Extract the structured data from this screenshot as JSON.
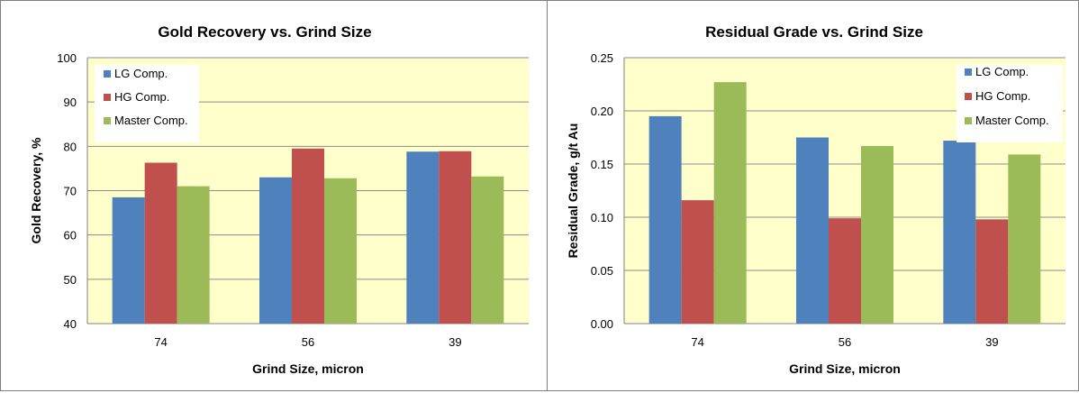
{
  "colors": {
    "plot_bg": "#FFFFCC",
    "grid": "#8C8C8C",
    "axis": "#808080",
    "series": [
      "#4F81BD",
      "#C0504D",
      "#9BBB59"
    ]
  },
  "chart_data": [
    {
      "type": "bar",
      "title": "Gold Recovery vs. Grind Size",
      "xlabel": "Grind Size, micron",
      "ylabel": "Gold Recovery, %",
      "categories": [
        "74",
        "56",
        "39"
      ],
      "ylim": [
        40,
        100
      ],
      "yticks": [
        "40",
        "50",
        "60",
        "70",
        "80",
        "90",
        "100"
      ],
      "grid": true,
      "legend_position": "top-left",
      "series": [
        {
          "name": "LG Comp.",
          "values": [
            68.5,
            73.0,
            78.8
          ]
        },
        {
          "name": "HG Comp.",
          "values": [
            76.3,
            79.5,
            78.9
          ]
        },
        {
          "name": "Master Comp.",
          "values": [
            71.0,
            72.8,
            73.2
          ]
        }
      ]
    },
    {
      "type": "bar",
      "title": "Residual Grade vs. Grind Size",
      "xlabel": "Grind Size, micron",
      "ylabel": "Residual Grade, g/t Au",
      "categories": [
        "74",
        "56",
        "39"
      ],
      "ylim": [
        0,
        0.25
      ],
      "yticks": [
        "0.00",
        "0.05",
        "0.10",
        "0.15",
        "0.20",
        "0.25"
      ],
      "grid": true,
      "legend_position": "top-right",
      "series": [
        {
          "name": "LG Comp.",
          "values": [
            0.195,
            0.175,
            0.172
          ]
        },
        {
          "name": "HG Comp.",
          "values": [
            0.116,
            0.099,
            0.098
          ]
        },
        {
          "name": "Master Comp.",
          "values": [
            0.227,
            0.167,
            0.159
          ]
        }
      ]
    }
  ]
}
